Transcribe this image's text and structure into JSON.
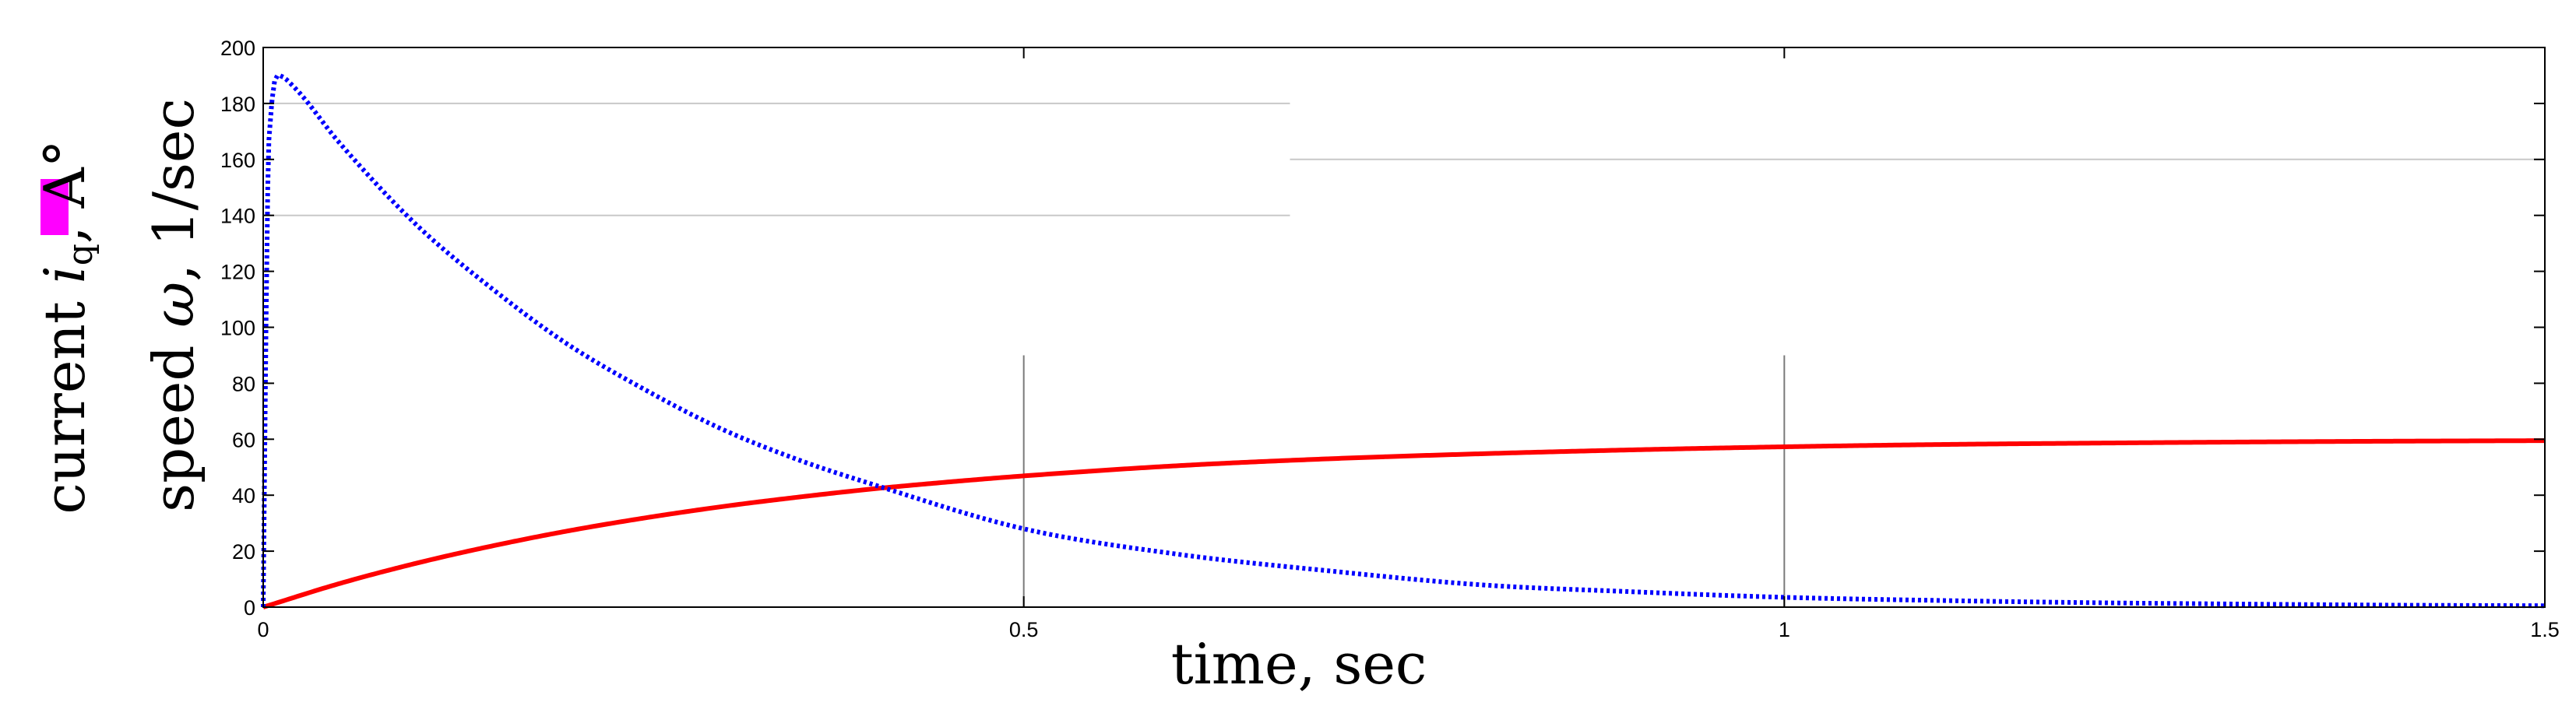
{
  "chart_data": {
    "type": "line",
    "xlabel": "time, sec",
    "ylabel_current": {
      "prefix": "current ",
      "symbol": "i",
      "subscript": "q",
      "suffix": ", A°"
    },
    "ylabel_speed": {
      "prefix": "speed ",
      "symbol": "ω",
      "suffix": ", 1/sec"
    },
    "xlim": [
      0,
      1.5
    ],
    "ylim": [
      0,
      200
    ],
    "x_ticks": [
      0,
      0.5,
      1,
      1.5
    ],
    "x_tick_labels": [
      "0",
      "0.5",
      "1",
      "1.5"
    ],
    "y_ticks": [
      0,
      20,
      40,
      60,
      80,
      100,
      120,
      140,
      160,
      180,
      200
    ],
    "y_tick_labels": [
      "0",
      "20",
      "40",
      "60",
      "80",
      "100",
      "120",
      "140",
      "160",
      "180",
      "200"
    ],
    "grid": "partial",
    "highlight_color": "#ff00ff",
    "series": [
      {
        "color": "#ff0000",
        "style": "solid",
        "x": [
          0,
          0.05,
          0.1,
          0.15,
          0.2,
          0.25,
          0.3,
          0.35,
          0.4,
          0.45,
          0.5,
          0.6,
          0.7,
          0.8,
          0.9,
          1.0,
          1.1,
          1.2,
          1.3,
          1.4,
          1.5
        ],
        "y": [
          0,
          8.4,
          15.6,
          21.8,
          27.2,
          31.8,
          35.8,
          39.2,
          42.2,
          44.7,
          46.9,
          50.5,
          53.0,
          54.8,
          56.2,
          57.3,
          58.1,
          58.6,
          59.0,
          59.3,
          59.5
        ]
      },
      {
        "color": "#0000ff",
        "style": "dotted",
        "x": [
          0,
          0.003,
          0.006,
          0.01,
          0.02,
          0.05,
          0.1,
          0.15,
          0.2,
          0.25,
          0.3,
          0.35,
          0.4,
          0.5,
          0.6,
          0.7,
          0.8,
          0.9,
          1.0,
          1.1,
          1.2,
          1.3,
          1.4,
          1.5
        ],
        "y": [
          0,
          150,
          182,
          190,
          186,
          166,
          137,
          114,
          94,
          78,
          64,
          53,
          44,
          28,
          19,
          13,
          8,
          5.5,
          3.5,
          2.4,
          1.6,
          1.1,
          0.7,
          0.5
        ]
      }
    ]
  }
}
